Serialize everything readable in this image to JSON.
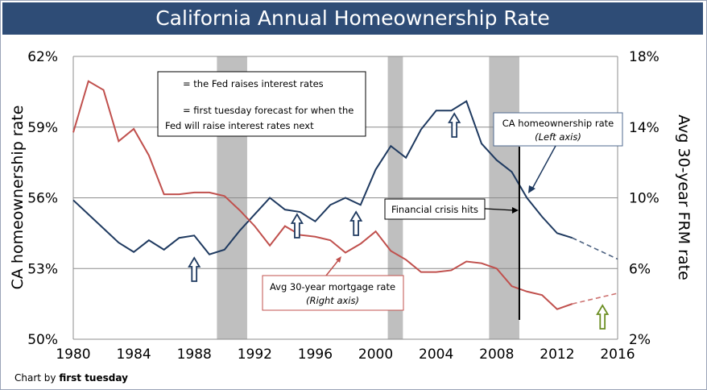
{
  "chart_data": {
    "type": "line",
    "title": "California Annual Homeownership Rate",
    "credit_prefix": "Chart by ",
    "credit_brand": "first tuesday",
    "x_ticks": [
      "1980",
      "1984",
      "1988",
      "1992",
      "1996",
      "2000",
      "2004",
      "2008",
      "2012",
      "2016"
    ],
    "xlim": [
      1980,
      2016
    ],
    "left_axis": {
      "label": "CA homeownership rate",
      "ylim": [
        50,
        62
      ],
      "ticks": [
        "50%",
        "53%",
        "56%",
        "59%",
        "62%"
      ]
    },
    "right_axis": {
      "label": "Avg 30-year FRM rate",
      "ylim": [
        2,
        18
      ],
      "ticks": [
        "2%",
        "6%",
        "10%",
        "14%",
        "18%"
      ]
    },
    "grid": true,
    "recession_bands": [
      [
        1989.5,
        1991.5
      ],
      [
        2000.8,
        2001.8
      ],
      [
        2007.5,
        2009.5
      ]
    ],
    "series": [
      {
        "name": "CA homeownership rate",
        "axis": "left",
        "color": "#1f3a60",
        "x": [
          1980,
          1981,
          1982,
          1983,
          1984,
          1985,
          1986,
          1987,
          1988,
          1989,
          1990,
          1991,
          1992,
          1993,
          1994,
          1995,
          1996,
          1997,
          1998,
          1999,
          2000,
          2001,
          2002,
          2003,
          2004,
          2005,
          2006,
          2007,
          2008,
          2009,
          2010,
          2011,
          2012,
          2013
        ],
        "y": [
          55.9,
          55.3,
          54.7,
          54.1,
          53.7,
          54.2,
          53.8,
          54.3,
          54.4,
          53.6,
          53.8,
          54.6,
          55.3,
          56.0,
          55.5,
          55.4,
          55.0,
          55.7,
          56.0,
          55.7,
          57.2,
          58.2,
          57.7,
          58.9,
          59.7,
          59.7,
          60.1,
          58.3,
          57.6,
          57.1,
          56.0,
          55.2,
          54.5,
          54.3
        ],
        "forecast": {
          "x": [
            2013,
            2016
          ],
          "y": [
            54.3,
            53.4
          ]
        }
      },
      {
        "name": "Avg 30-year mortgage rate",
        "axis": "right",
        "color": "#c0504d",
        "x": [
          1980,
          1981,
          1982,
          1983,
          1984,
          1985,
          1986,
          1987,
          1988,
          1989,
          1990,
          1991,
          1992,
          1993,
          1994,
          1995,
          1996,
          1997,
          1998,
          1999,
          2000,
          2001,
          2002,
          2003,
          2004,
          2005,
          2006,
          2007,
          2008,
          2009,
          2010,
          2011,
          2012,
          2013
        ],
        "y": [
          13.7,
          16.6,
          16.1,
          13.2,
          13.9,
          12.4,
          10.2,
          10.2,
          10.3,
          10.3,
          10.1,
          9.3,
          8.4,
          7.3,
          8.4,
          7.9,
          7.8,
          7.6,
          6.9,
          7.4,
          8.1,
          7.0,
          6.5,
          5.8,
          5.8,
          5.9,
          6.4,
          6.3,
          6.0,
          5.0,
          4.7,
          4.5,
          3.7,
          4.0
        ],
        "forecast": {
          "x": [
            2013,
            2016
          ],
          "y": [
            4.0,
            4.6
          ]
        }
      }
    ],
    "fed_raise_years_blue": [
      1988,
      1994.8,
      1998.7,
      2005.2
    ],
    "fed_forecast_year_green": 2015,
    "legend": {
      "blue_arrow_text": "= the Fed raises interest rates",
      "green_arrow_line1": "= first tuesday forecast for when the",
      "green_arrow_line2": "Fed will raise interest rates next"
    },
    "annotations": {
      "ca_rate_line1": "CA homeownership  rate",
      "ca_rate_line2": "(Left axis)",
      "mortgage_line1": "Avg 30-year mortgage rate",
      "mortgage_line2": "(Right axis)",
      "crisis": "Financial crisis hits",
      "crisis_year": 2009.5
    }
  },
  "colors": {
    "title_bg": "#2e4c76",
    "band": "#bfbfbf",
    "grid": "#8c8c8c",
    "blue_arrow": "#1f3a60",
    "green_arrow": "#6b8e23"
  }
}
